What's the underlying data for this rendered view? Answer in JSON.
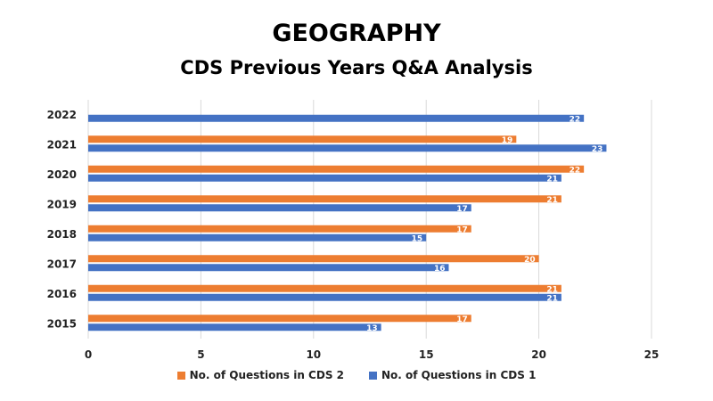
{
  "chart_data": {
    "type": "bar",
    "orientation": "horizontal",
    "title": "GEOGRAPHY",
    "subtitle": "CDS Previous Years Q&A Analysis",
    "categories": [
      "2022",
      "2021",
      "2020",
      "2019",
      "2018",
      "2017",
      "2016",
      "2015"
    ],
    "series": [
      {
        "name": "No. of Questions in CDS 2",
        "color": "#ED7D31",
        "values": [
          null,
          19,
          22,
          21,
          17,
          20,
          21,
          17
        ]
      },
      {
        "name": "No. of Questions in CDS 1",
        "color": "#4472C4",
        "values": [
          22,
          23,
          21,
          17,
          15,
          16,
          21,
          13
        ]
      }
    ],
    "xlim": [
      0,
      25
    ],
    "xticks": [
      "0",
      "5",
      "10",
      "15",
      "20",
      "25"
    ],
    "xlabel": "",
    "ylabel": "",
    "grid": true,
    "legend_position": "bottom"
  }
}
